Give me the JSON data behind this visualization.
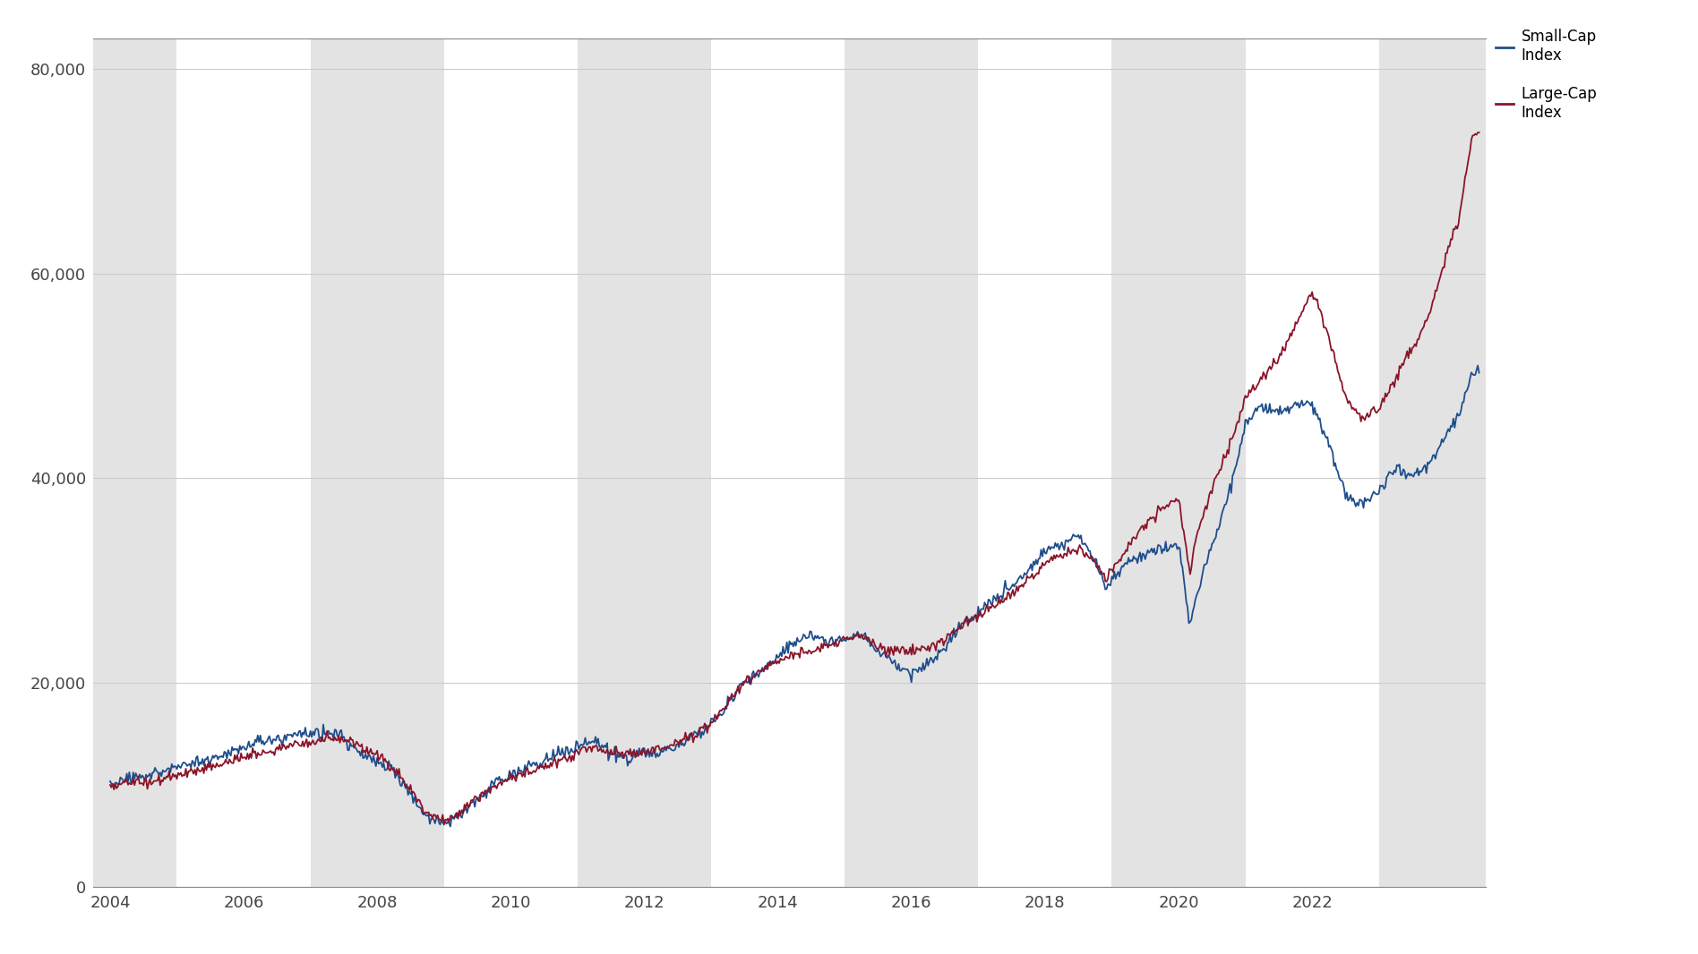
{
  "background_color": "#ffffff",
  "plot_bg_color": "#ffffff",
  "shaded_regions_color": "#e3e3e3",
  "small_cap_color": "#1f4e8c",
  "large_cap_color": "#8b1428",
  "small_cap_label": "Small-Cap\nIndex",
  "large_cap_label": "Large-Cap\nIndex",
  "ylim": [
    0,
    83000
  ],
  "yticks": [
    0,
    20000,
    40000,
    60000,
    80000
  ],
  "ytick_labels": [
    "0",
    "20,000",
    "40,000",
    "60,000",
    "80,000"
  ],
  "xlim_start": 2003.75,
  "xlim_end": 2024.6,
  "xticks": [
    2004,
    2006,
    2008,
    2010,
    2012,
    2014,
    2016,
    2018,
    2020,
    2022
  ],
  "shaded_bands": [
    [
      2003.75,
      2005.0
    ],
    [
      2007.0,
      2009.0
    ],
    [
      2011.0,
      2013.0
    ],
    [
      2015.0,
      2017.0
    ],
    [
      2019.0,
      2021.0
    ],
    [
      2023.0,
      2024.6
    ]
  ],
  "line_width": 1.3
}
